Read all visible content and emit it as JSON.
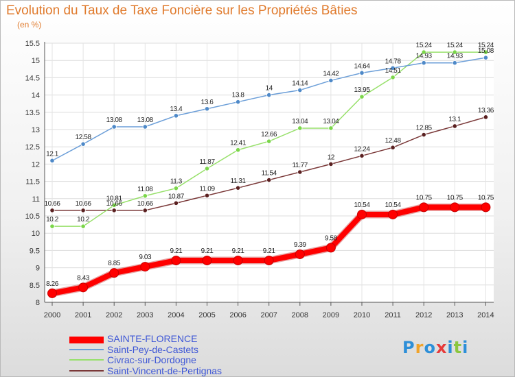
{
  "header": {
    "title": "Evolution du Taux de Taxe Foncière sur les Propriétés Bâties",
    "unit": "(en %)"
  },
  "brand": {
    "logo_text": "Proxiti"
  },
  "chart_data": {
    "type": "line",
    "x": [
      "2000",
      "2001",
      "2002",
      "2003",
      "2004",
      "2005",
      "2006",
      "2007",
      "2008",
      "2009",
      "2010",
      "2011",
      "2012",
      "2013",
      "2014"
    ],
    "yticks": [
      "8",
      "8.5",
      "9",
      "9.5",
      "10",
      "10.5",
      "11",
      "11.5",
      "12",
      "12.5",
      "13",
      "13.5",
      "14",
      "14.5",
      "15",
      "15.5"
    ],
    "ylim": [
      8,
      15.5
    ],
    "grid": true,
    "legend_position": "bottom-left",
    "series": [
      {
        "name": "SAINTE-FLORENCE",
        "color": "#ff0000",
        "bold": true,
        "values": [
          8.26,
          8.43,
          8.85,
          9.03,
          9.21,
          9.21,
          9.21,
          9.21,
          9.39,
          9.58,
          10.54,
          10.54,
          10.75,
          10.75,
          10.75
        ],
        "labels": [
          "8.26",
          "8.43",
          "8.85",
          "9.03",
          "9.21",
          "9.21",
          "9.21",
          "9.21",
          "9.39",
          "9.58",
          "10.54",
          "10.54",
          "10.75",
          "10.75",
          "10.75"
        ]
      },
      {
        "name": "Saint-Pey-de-Castets",
        "color": "#6b9ed8",
        "marker": "#4e89c8",
        "values": [
          12.1,
          12.58,
          13.08,
          13.08,
          13.4,
          13.6,
          13.8,
          14,
          14.14,
          14.42,
          14.64,
          14.78,
          14.93,
          14.93,
          15.08
        ],
        "labels": [
          "12.1",
          "12.58",
          "13.08",
          "13.08",
          "13.4",
          "13.6",
          "13.8",
          "14",
          "14.14",
          "14.42",
          "14.64",
          "14.78",
          "14.93",
          "14.93",
          "15.08"
        ]
      },
      {
        "name": "Civrac-sur-Dordogne",
        "color": "#97e06a",
        "marker": "#7bd64a",
        "values": [
          10.2,
          10.2,
          10.81,
          11.08,
          11.3,
          11.87,
          12.41,
          12.66,
          13.04,
          13.04,
          13.95,
          14.51,
          15.24,
          15.24,
          15.24
        ],
        "labels": [
          "10.2",
          "10.2",
          "10.81",
          "11.08",
          "11.3",
          "11.87",
          "12.41",
          "12.66",
          "13.04",
          "13.04",
          "13.95",
          "14.51",
          "15.24",
          "15.24",
          "15.24"
        ]
      },
      {
        "name": "Saint-Vincent-de-Pertignas",
        "color": "#7a3838",
        "marker": "#5a2020",
        "values": [
          10.66,
          10.66,
          10.66,
          10.66,
          10.87,
          11.09,
          11.31,
          11.54,
          11.77,
          12,
          12.24,
          12.48,
          12.85,
          13.1,
          13.36
        ],
        "labels": [
          "10.66",
          "10.66",
          "10.66",
          "10.66",
          "10.87",
          "11.09",
          "11.31",
          "11.54",
          "11.77",
          "12",
          "12.24",
          "12.48",
          "12.85",
          "13.1",
          "13.36"
        ]
      }
    ]
  }
}
